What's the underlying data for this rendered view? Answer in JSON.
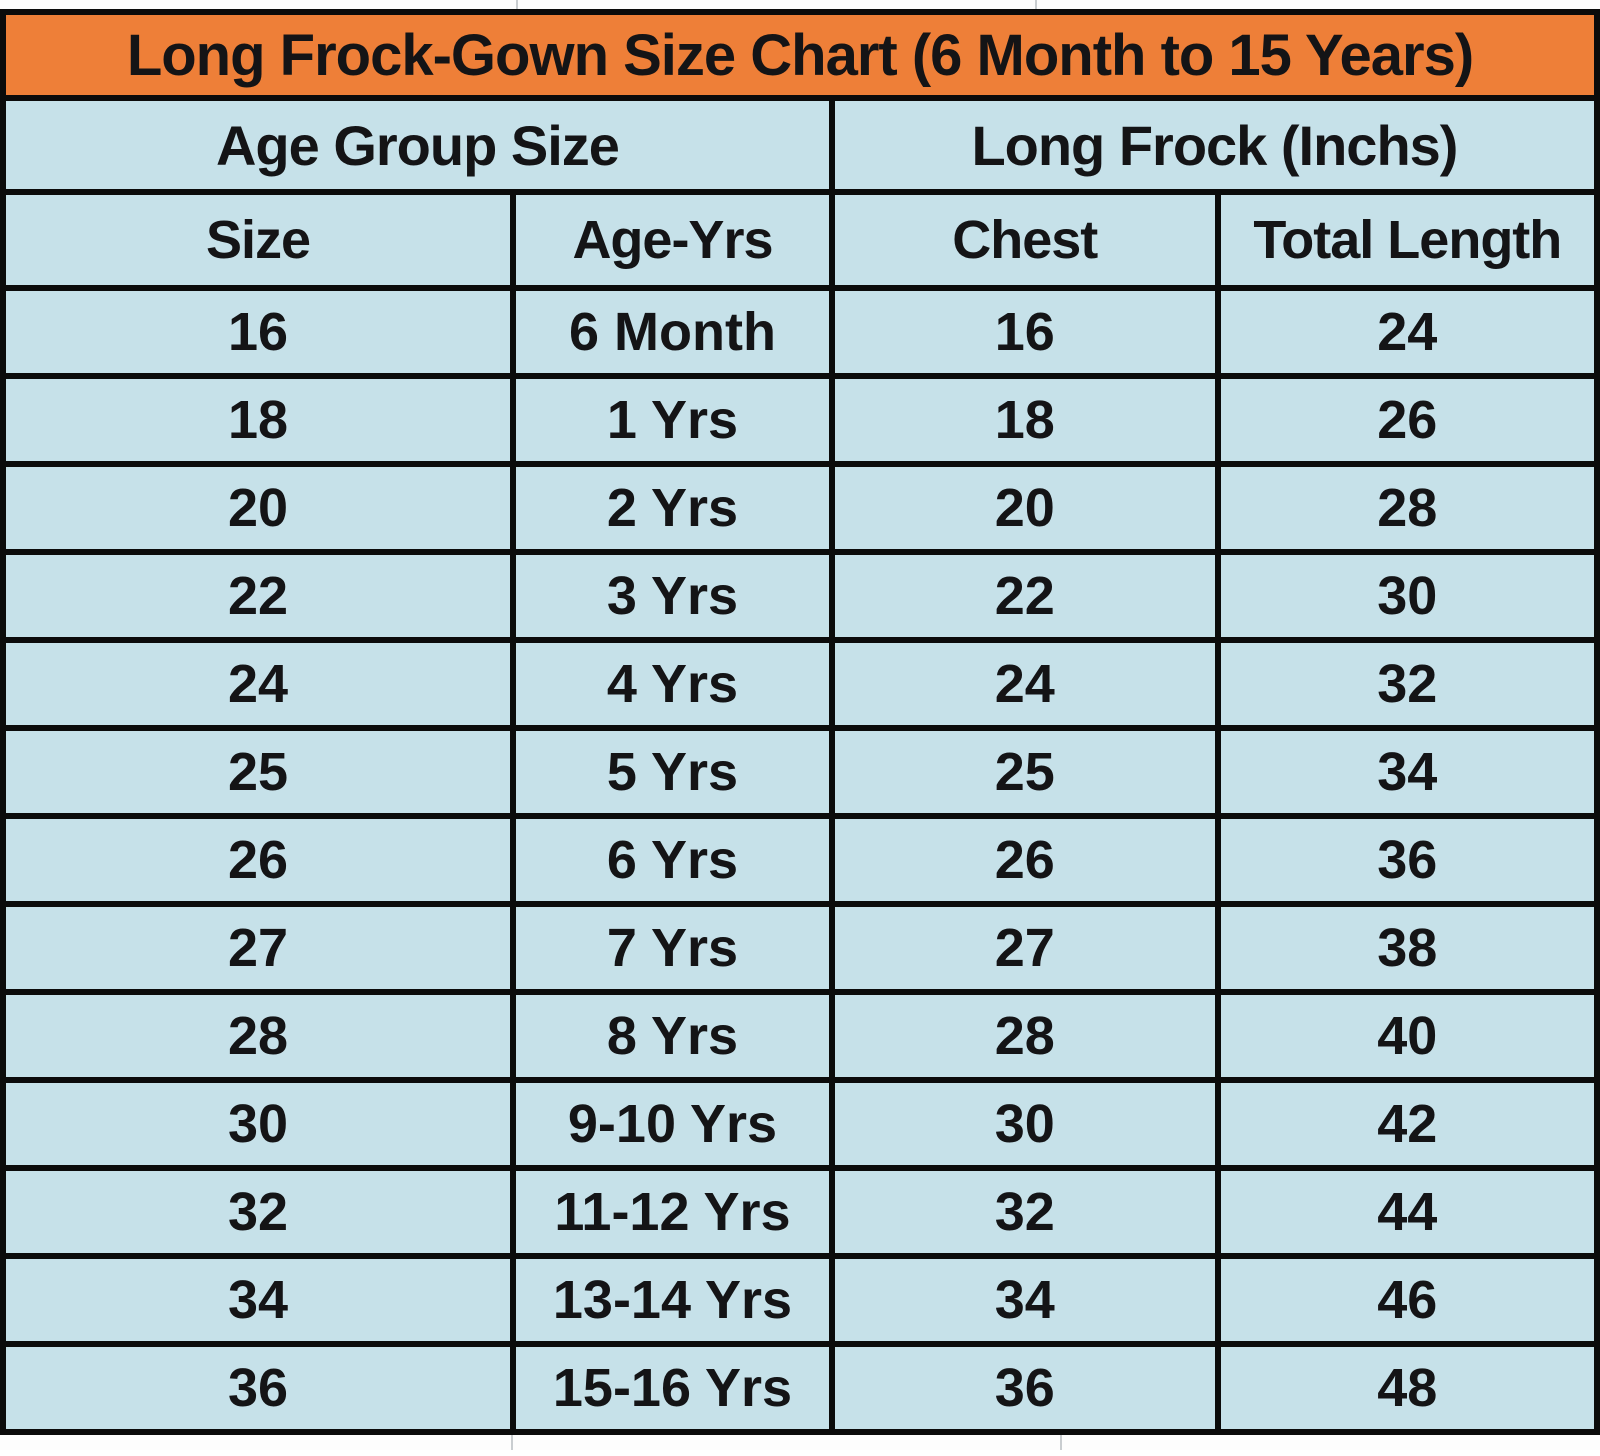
{
  "chart_data": {
    "type": "table",
    "title": "Long Frock-Gown Size Chart  (6 Month to 15 Years)",
    "group_headers": [
      "Age Group Size",
      "Long Frock (Inchs)"
    ],
    "columns": [
      "Size",
      "Age-Yrs",
      "Chest",
      "Total Length"
    ],
    "rows": [
      [
        "16",
        "6 Month",
        "16",
        "24"
      ],
      [
        "18",
        "1 Yrs",
        "18",
        "26"
      ],
      [
        "20",
        "2 Yrs",
        "20",
        "28"
      ],
      [
        "22",
        "3 Yrs",
        "22",
        "30"
      ],
      [
        "24",
        "4 Yrs",
        "24",
        "32"
      ],
      [
        "25",
        "5 Yrs",
        "25",
        "34"
      ],
      [
        "26",
        "6 Yrs",
        "26",
        "36"
      ],
      [
        "27",
        "7 Yrs",
        "27",
        "38"
      ],
      [
        "28",
        "8 Yrs",
        "28",
        "40"
      ],
      [
        "30",
        "9-10 Yrs",
        "30",
        "42"
      ],
      [
        "32",
        "11-12 Yrs",
        "32",
        "44"
      ],
      [
        "34",
        "13-14 Yrs",
        "34",
        "46"
      ],
      [
        "36",
        "15-16 Yrs",
        "36",
        "48"
      ]
    ]
  },
  "colors": {
    "title_bg": "#ee7f38",
    "cell_bg": "#c6e1e9",
    "border": "#0b0b0b",
    "text": "#141416"
  }
}
